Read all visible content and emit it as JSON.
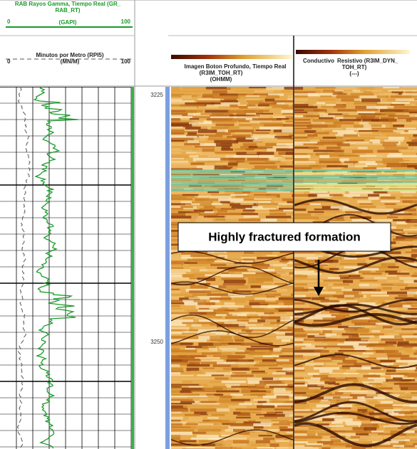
{
  "header": {
    "gamma": {
      "title": "RAB Rayos Gamma, Tiempo Real (GR_",
      "title2": "RAB_RT)",
      "unit": "(GAPI)",
      "min": 0,
      "max": 100
    },
    "rop": {
      "title": "Minutos por Metro (RPI5)",
      "unit": "(MN/M)",
      "min": 0,
      "max": 100
    },
    "image1": {
      "title": "Imagen Boton Profundo, Tiempo Real",
      "mnemonic": "(R3IM_TOH_RT)",
      "unit": "(OHMM)"
    },
    "image2": {
      "left": "Conductivo",
      "right": "Resistivo (R3IM_DYN_",
      "mnemonic": "TOH_RT)",
      "unit": "(---)"
    }
  },
  "depth": {
    "labels": [
      3225,
      3250
    ]
  },
  "annotation": "Highly fractured formation"
}
